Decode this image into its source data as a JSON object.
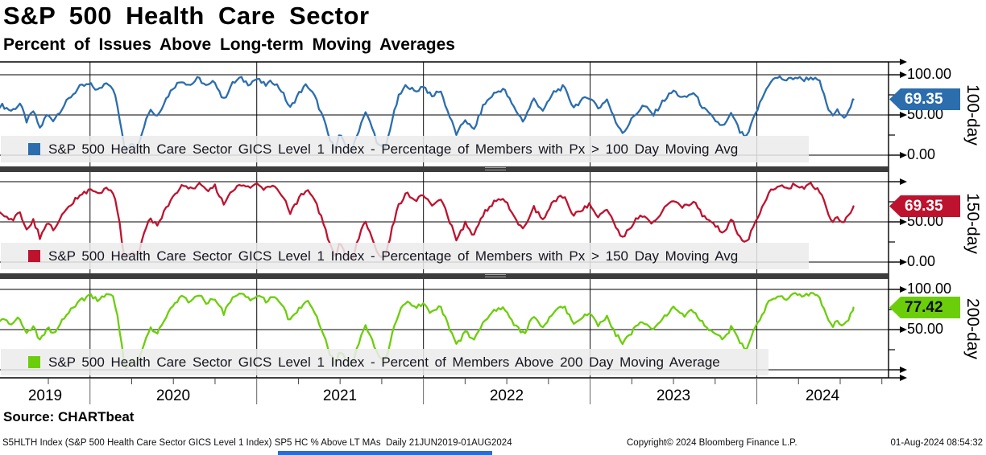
{
  "header": {
    "title": "S&P 500 Health Care Sector",
    "subtitle": "Percent of Issues Above Long-term Moving Averages"
  },
  "source_line": "Source: CHARTbeat",
  "footer": {
    "left": "S5HLTH Index (S&P 500 Health Care Sector GICS Level 1 Index) SP5 HC % Above LT MAs  Daily 21JUN2019-01AUG2024",
    "copyright": "Copyright© 2024 Bloomberg Finance L.P.",
    "timestamp": "01-Aug-2024 08:54:32"
  },
  "x_axis": {
    "year_labels": [
      "2019",
      "2020",
      "2021",
      "2022",
      "2023",
      "2024"
    ]
  },
  "panels": [
    {
      "id": "100-day",
      "axis_label": "100-day",
      "color": "#2b6dad",
      "tag": {
        "value": "69.35",
        "text_color": "#ffffff"
      },
      "legend": "S&P 500 Health Care Sector GICS Level 1 Index - Percentage of Members with Px > 100 Day Moving Avg",
      "yticks": [
        {
          "v": 100,
          "label": "100.00"
        },
        {
          "v": 50,
          "label": "50.00"
        },
        {
          "v": 0,
          "label": "0.00"
        }
      ]
    },
    {
      "id": "150-day",
      "axis_label": "150-day",
      "color": "#bd132f",
      "tag": {
        "value": "69.35",
        "text_color": "#ffffff"
      },
      "legend": "S&P 500 Health Care Sector GICS Level 1 Index - Percentage of Members with Px > 150 Day Moving Avg",
      "yticks": [
        {
          "v": 100,
          "label": ""
        },
        {
          "v": 50,
          "label": "50.00"
        },
        {
          "v": 0,
          "label": "0.00"
        }
      ]
    },
    {
      "id": "200-day",
      "axis_label": "200-day",
      "color": "#6cce0b",
      "tag": {
        "value": "77.42",
        "text_color": "#101010"
      },
      "legend": "S&P 500 Health Care Sector GICS Level 1 Index - Percent of Members Above 200 Day Moving Average",
      "yticks": [
        {
          "v": 100,
          "label": "100.00"
        },
        {
          "v": 50,
          "label": "50.00"
        },
        {
          "v": 0,
          "label": ""
        }
      ]
    }
  ],
  "chart_data": {
    "type": "line",
    "title": "S&P 500 Health Care Sector — Percent of Issues Above Long-term Moving Averages",
    "x_unit": "decimal_year",
    "x_range_plotted": [
      2019.46,
      2024.79
    ],
    "data_span": "21JUN2019-01AUG2024",
    "ylim": [
      0,
      100
    ],
    "yticks": [
      0,
      50,
      100
    ],
    "grid_vertical_years": [
      2020,
      2021,
      2022,
      2023,
      2024
    ],
    "legend_position": "bottom-left inside each panel",
    "x": [
      2019.47,
      2019.53,
      2019.58,
      2019.62,
      2019.66,
      2019.7,
      2019.74,
      2019.78,
      2019.83,
      2019.88,
      2019.94,
      2020.0,
      2020.05,
      2020.1,
      2020.14,
      2020.17,
      2020.2,
      2020.22,
      2020.25,
      2020.28,
      2020.32,
      2020.36,
      2020.4,
      2020.45,
      2020.5,
      2020.55,
      2020.6,
      2020.65,
      2020.7,
      2020.75,
      2020.8,
      2020.85,
      2020.9,
      2020.95,
      2021.0,
      2021.05,
      2021.1,
      2021.15,
      2021.2,
      2021.25,
      2021.3,
      2021.35,
      2021.4,
      2021.44,
      2021.47,
      2021.5,
      2021.53,
      2021.57,
      2021.61,
      2021.65,
      2021.69,
      2021.73,
      2021.77,
      2021.81,
      2021.85,
      2021.9,
      2021.95,
      2022.0,
      2022.05,
      2022.1,
      2022.15,
      2022.2,
      2022.25,
      2022.3,
      2022.36,
      2022.42,
      2022.48,
      2022.54,
      2022.6,
      2022.66,
      2022.72,
      2022.78,
      2022.84,
      2022.9,
      2022.95,
      2023.0,
      2023.05,
      2023.1,
      2023.15,
      2023.2,
      2023.26,
      2023.32,
      2023.38,
      2023.44,
      2023.5,
      2023.56,
      2023.62,
      2023.68,
      2023.74,
      2023.8,
      2023.85,
      2023.9,
      2023.94,
      2023.98,
      2024.03,
      2024.08,
      2024.13,
      2024.18,
      2024.23,
      2024.28,
      2024.33,
      2024.38,
      2024.42,
      2024.45,
      2024.48,
      2024.51,
      2024.54,
      2024.58
    ],
    "series": [
      {
        "name": "Percentage of Members with Px > 100 Day Moving Avg",
        "color": "#2b6dad",
        "last_value": 69.35,
        "values": [
          62,
          55,
          64,
          42,
          55,
          33,
          50,
          44,
          58,
          72,
          85,
          88,
          80,
          92,
          83,
          55,
          15,
          5,
          18,
          8,
          35,
          58,
          48,
          68,
          85,
          93,
          87,
          96,
          85,
          92,
          68,
          88,
          96,
          89,
          95,
          87,
          92,
          80,
          58,
          76,
          88,
          72,
          45,
          18,
          8,
          28,
          10,
          4,
          30,
          55,
          35,
          12,
          7,
          42,
          72,
          88,
          78,
          87,
          72,
          82,
          52,
          25,
          45,
          30,
          62,
          76,
          83,
          60,
          42,
          70,
          55,
          78,
          85,
          60,
          68,
          73,
          58,
          70,
          42,
          28,
          48,
          62,
          50,
          68,
          80,
          70,
          78,
          58,
          45,
          35,
          52,
          28,
          22,
          45,
          70,
          92,
          97,
          93,
          97,
          94,
          97,
          90,
          62,
          48,
          56,
          47,
          52,
          69.35
        ]
      },
      {
        "name": "Percentage of Members with Px > 150 Day Moving Avg",
        "color": "#bd132f",
        "last_value": 69.35,
        "values": [
          60,
          52,
          62,
          40,
          52,
          30,
          48,
          42,
          56,
          70,
          84,
          90,
          83,
          94,
          86,
          58,
          12,
          3,
          15,
          5,
          32,
          55,
          45,
          65,
          82,
          95,
          90,
          97,
          88,
          94,
          72,
          90,
          98,
          92,
          96,
          90,
          94,
          84,
          62,
          78,
          90,
          75,
          48,
          20,
          6,
          25,
          8,
          2,
          28,
          52,
          33,
          10,
          5,
          40,
          70,
          86,
          76,
          85,
          70,
          80,
          55,
          28,
          48,
          33,
          60,
          74,
          80,
          58,
          40,
          68,
          52,
          76,
          83,
          58,
          66,
          72,
          56,
          68,
          44,
          30,
          50,
          60,
          48,
          66,
          78,
          68,
          76,
          56,
          47,
          37,
          54,
          30,
          24,
          47,
          68,
          90,
          96,
          92,
          96,
          93,
          96,
          88,
          64,
          50,
          58,
          49,
          54,
          69.35
        ]
      },
      {
        "name": "Percent of Members Above 200 Day Moving Average",
        "color": "#6cce0b",
        "last_value": 77.42,
        "values": [
          63,
          56,
          65,
          44,
          56,
          35,
          52,
          46,
          60,
          74,
          86,
          92,
          86,
          96,
          90,
          62,
          15,
          2,
          14,
          6,
          30,
          52,
          44,
          62,
          80,
          90,
          85,
          93,
          84,
          90,
          70,
          87,
          94,
          88,
          92,
          86,
          90,
          80,
          60,
          74,
          86,
          70,
          46,
          20,
          8,
          26,
          12,
          5,
          32,
          56,
          38,
          15,
          10,
          44,
          70,
          85,
          76,
          84,
          70,
          79,
          54,
          30,
          48,
          35,
          60,
          72,
          78,
          58,
          44,
          66,
          52,
          72,
          80,
          58,
          64,
          70,
          56,
          66,
          45,
          33,
          50,
          60,
          50,
          64,
          76,
          66,
          74,
          56,
          48,
          38,
          54,
          32,
          27,
          48,
          68,
          88,
          93,
          89,
          94,
          91,
          94,
          88,
          66,
          54,
          62,
          53,
          58,
          77.42
        ]
      }
    ]
  }
}
